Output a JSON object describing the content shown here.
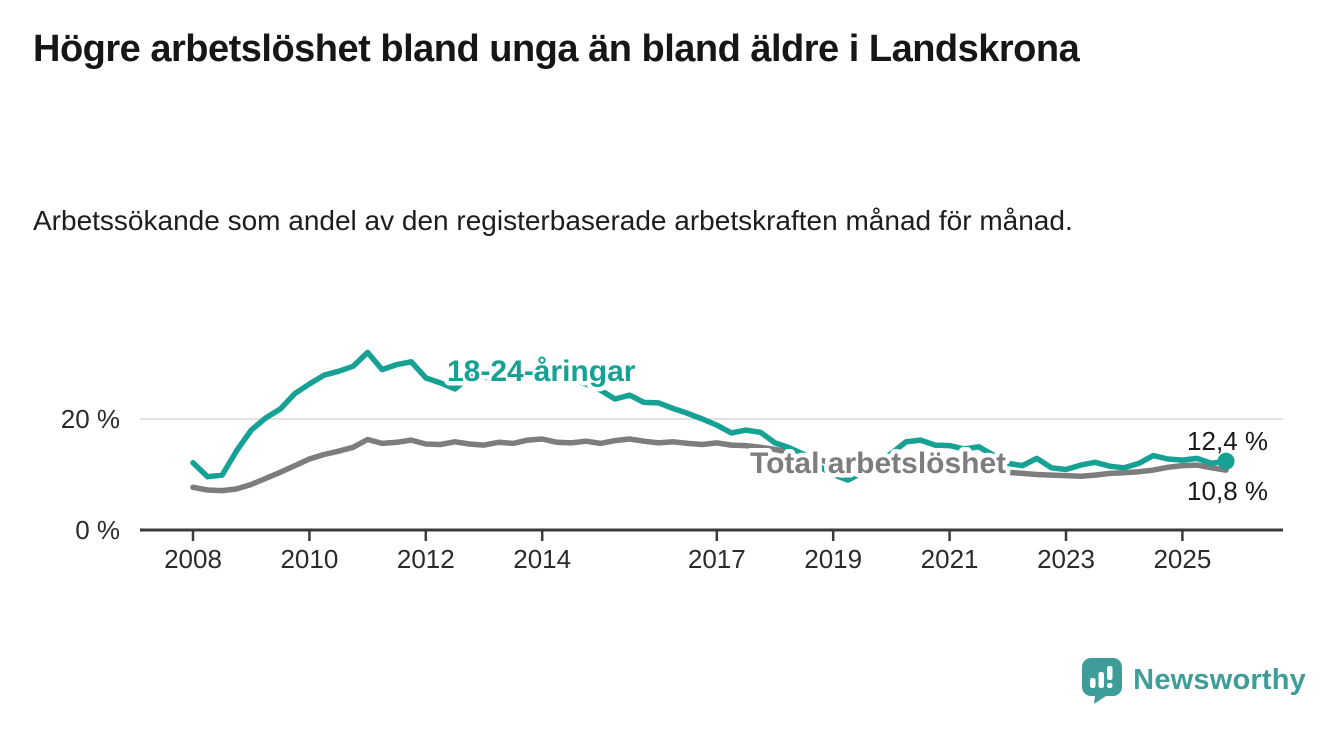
{
  "branding": {
    "name": "Newsworthy",
    "logo_icon": "newsworthy-speech-bubble-bar-chart-icon",
    "color": "#3f9d99"
  },
  "chart_data": {
    "type": "line",
    "title": "Högre arbetslöshet bland unga än bland äldre i Landskrona",
    "subtitle": "Arbetssökande som andel av den registerbaserade arbetskraften månad för månad.",
    "y_unit": "%",
    "grid": "y-only",
    "legend": "inline-labels",
    "xlim": [
      2007.1,
      2026.7
    ],
    "ylim": [
      0,
      36
    ],
    "y_ticks": [
      {
        "value": 20,
        "label": "20 %"
      },
      {
        "value": 0,
        "label": "0 %"
      }
    ],
    "x_ticks": [
      {
        "value": 2008,
        "label": "2008"
      },
      {
        "value": 2010,
        "label": "2010"
      },
      {
        "value": 2012,
        "label": "2012"
      },
      {
        "value": 2014,
        "label": "2014"
      },
      {
        "value": 2017,
        "label": "2017"
      },
      {
        "value": 2019,
        "label": "2019"
      },
      {
        "value": 2021,
        "label": "2021"
      },
      {
        "value": 2023,
        "label": "2023"
      },
      {
        "value": 2025,
        "label": "2025"
      }
    ],
    "x": [
      2008,
      2008.25,
      2008.5,
      2008.75,
      2009,
      2009.25,
      2009.5,
      2009.75,
      2010,
      2010.25,
      2010.5,
      2010.75,
      2011,
      2011.25,
      2011.5,
      2011.75,
      2012,
      2012.25,
      2012.5,
      2012.75,
      2013,
      2013.25,
      2013.5,
      2013.75,
      2014,
      2014.25,
      2014.5,
      2014.75,
      2015,
      2015.25,
      2015.5,
      2015.75,
      2016,
      2016.25,
      2016.5,
      2016.75,
      2017,
      2017.25,
      2017.5,
      2017.75,
      2018,
      2018.25,
      2018.5,
      2018.75,
      2019,
      2019.25,
      2019.5,
      2019.75,
      2020,
      2020.25,
      2020.5,
      2020.75,
      2021,
      2021.25,
      2021.5,
      2021.75,
      2022,
      2022.25,
      2022.5,
      2022.75,
      2023,
      2023.25,
      2023.5,
      2023.75,
      2024,
      2024.25,
      2024.5,
      2024.75,
      2025,
      2025.25,
      2025.5,
      2025.75
    ],
    "series": [
      {
        "name": "18-24-åringar",
        "color": "#16a195",
        "end_label": "12,4 %",
        "end_value": 12.4,
        "values": [
          12.1,
          9.6,
          9.9,
          14.3,
          18.0,
          20.2,
          21.8,
          24.6,
          26.3,
          27.9,
          28.6,
          29.5,
          32.0,
          28.9,
          29.8,
          30.3,
          27.4,
          26.5,
          25.4,
          27.6,
          27.6,
          26.9,
          27.8,
          28.3,
          28.8,
          27.9,
          27.2,
          26.3,
          25.2,
          23.6,
          24.3,
          23.0,
          22.9,
          21.9,
          21.0,
          20.0,
          18.9,
          17.5,
          18.0,
          17.6,
          15.7,
          14.8,
          13.6,
          11.5,
          10.0,
          9.0,
          10.3,
          12.0,
          13.8,
          15.9,
          16.2,
          15.3,
          15.2,
          14.6,
          15.0,
          13.5,
          12.0,
          11.6,
          12.9,
          11.2,
          10.9,
          11.7,
          12.2,
          11.5,
          11.2,
          12.0,
          13.4,
          12.8,
          12.6,
          12.9,
          12.0,
          12.4
        ]
      },
      {
        "name": "Total arbetslöshet",
        "color": "#7d7d7d",
        "end_label": "10,8 %",
        "end_value": 10.8,
        "values": [
          7.7,
          7.2,
          7.1,
          7.4,
          8.2,
          9.3,
          10.4,
          11.6,
          12.8,
          13.6,
          14.2,
          14.9,
          16.3,
          15.6,
          15.8,
          16.2,
          15.5,
          15.4,
          15.9,
          15.5,
          15.3,
          15.8,
          15.6,
          16.2,
          16.4,
          15.8,
          15.7,
          16.0,
          15.6,
          16.1,
          16.4,
          16.0,
          15.7,
          15.9,
          15.6,
          15.4,
          15.7,
          15.3,
          15.2,
          14.9,
          14.5,
          14.0,
          13.4,
          12.7,
          12.0,
          11.4,
          11.2,
          11.5,
          12.0,
          12.8,
          13.2,
          13.0,
          12.6,
          12.2,
          11.8,
          11.0,
          10.4,
          10.2,
          10.0,
          9.9,
          9.8,
          9.7,
          9.9,
          10.2,
          10.3,
          10.5,
          10.8,
          11.3,
          11.6,
          11.7,
          11.2,
          10.8
        ]
      }
    ]
  }
}
